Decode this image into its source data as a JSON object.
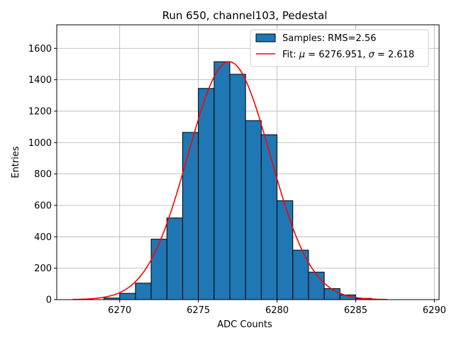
{
  "chart_data": {
    "type": "bar",
    "title": "Run 650, channel103, Pedestal",
    "xlabel": "ADC Counts",
    "ylabel": "Entries",
    "xlim": [
      6266,
      6290.3
    ],
    "ylim": [
      0,
      1750
    ],
    "xticks": [
      6270,
      6275,
      6280,
      6285,
      6290
    ],
    "xtick_labels": [
      "6270",
      "6275",
      "6280",
      "6285",
      "6290"
    ],
    "yticks": [
      0,
      200,
      400,
      600,
      800,
      1000,
      1200,
      1400,
      1600
    ],
    "ytick_labels": [
      "0",
      "200",
      "400",
      "600",
      "800",
      "1000",
      "1200",
      "1400",
      "1600"
    ],
    "grid": true,
    "bin_width": 1,
    "bins": [
      {
        "left": 6269,
        "count": 10
      },
      {
        "left": 6270,
        "count": 40
      },
      {
        "left": 6271,
        "count": 105
      },
      {
        "left": 6272,
        "count": 385
      },
      {
        "left": 6273,
        "count": 520
      },
      {
        "left": 6274,
        "count": 1065
      },
      {
        "left": 6275,
        "count": 1345
      },
      {
        "left": 6276,
        "count": 1515
      },
      {
        "left": 6277,
        "count": 1435
      },
      {
        "left": 6278,
        "count": 1140
      },
      {
        "left": 6279,
        "count": 1050
      },
      {
        "left": 6280,
        "count": 630
      },
      {
        "left": 6281,
        "count": 315
      },
      {
        "left": 6282,
        "count": 175
      },
      {
        "left": 6283,
        "count": 70
      },
      {
        "left": 6284,
        "count": 30
      },
      {
        "left": 6285,
        "count": 8
      }
    ],
    "fit": {
      "mu": 6276.951,
      "sigma": 2.618,
      "amplitude": 1515,
      "x_range": [
        6267,
        6287
      ]
    },
    "legend": {
      "placement": "top-right",
      "entries": [
        {
          "label": "Samples: RMS=2.56",
          "kind": "patch",
          "color": "#1f77b4"
        },
        {
          "label_prefix": "Fit: ",
          "mu_symbol": "μ",
          "mu_text": " = 6276.951, ",
          "sigma_symbol": "σ",
          "sigma_text": " = 2.618",
          "kind": "line",
          "color": "#ff0000"
        }
      ]
    },
    "colors": {
      "bar_fill": "#1f77b4",
      "bar_edge": "#000000",
      "fit_line": "#ff0000",
      "grid": "#b0b0b0"
    }
  }
}
